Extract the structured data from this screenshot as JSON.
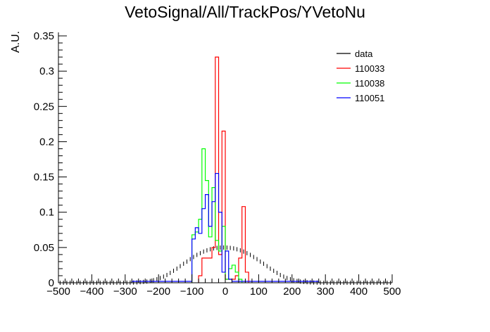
{
  "chart_data": {
    "type": "histogram",
    "title": "VetoSignal/All/TrackPos/YVetoNu",
    "xlabel": "",
    "ylabel": "A.U.",
    "xlim": [
      -500,
      500
    ],
    "ylim": [
      0,
      0.355
    ],
    "x_ticks": [
      -500,
      -400,
      -300,
      -200,
      -100,
      0,
      100,
      200,
      300,
      400,
      500
    ],
    "y_ticks": [
      0,
      0.05,
      0.1,
      0.15,
      0.2,
      0.25,
      0.3,
      0.35
    ],
    "x_tick_labels": [
      "−500",
      "−400",
      "−300",
      "−200",
      "−100",
      "0",
      "100",
      "200",
      "300",
      "400",
      "500"
    ],
    "y_tick_labels": [
      "0",
      "0.05",
      "0.1",
      "0.15",
      "0.2",
      "0.25",
      "0.3",
      "0.35"
    ],
    "legend_position": "top-right",
    "series": [
      {
        "name": "data",
        "color": "#000000",
        "style": "markers",
        "x": [
          -495,
          -485,
          -475,
          -465,
          -455,
          -445,
          -435,
          -425,
          -415,
          -405,
          -395,
          -385,
          -375,
          -365,
          -355,
          -345,
          -335,
          -325,
          -315,
          -305,
          -295,
          -285,
          -275,
          -265,
          -255,
          -245,
          -235,
          -225,
          -215,
          -205,
          -195,
          -185,
          -175,
          -165,
          -155,
          -145,
          -135,
          -125,
          -115,
          -105,
          -95,
          -85,
          -75,
          -65,
          -55,
          -45,
          -35,
          -25,
          -15,
          -5,
          5,
          15,
          25,
          35,
          45,
          55,
          65,
          75,
          85,
          95,
          105,
          115,
          125,
          135,
          145,
          155,
          165,
          175,
          185,
          195,
          205,
          215,
          225,
          235,
          245,
          255,
          265,
          275,
          285,
          295,
          305,
          315,
          325,
          335,
          345,
          355,
          365,
          375,
          385,
          395,
          405,
          415,
          425,
          435,
          445,
          455,
          465,
          475,
          485,
          495
        ],
        "y": [
          0,
          0,
          0,
          0,
          0,
          0,
          0,
          0,
          0,
          0,
          0,
          0,
          0,
          0,
          0,
          0,
          0,
          0,
          0,
          0,
          0.0001,
          0.0002,
          0.0003,
          0.0005,
          0.0008,
          0.0012,
          0.0017,
          0.0025,
          0.0036,
          0.005,
          0.0067,
          0.0087,
          0.011,
          0.014,
          0.017,
          0.02,
          0.0235,
          0.027,
          0.03,
          0.0335,
          0.0365,
          0.0395,
          0.042,
          0.0442,
          0.046,
          0.0475,
          0.0487,
          0.0494,
          0.0498,
          0.05,
          0.0498,
          0.0494,
          0.0487,
          0.0475,
          0.046,
          0.0442,
          0.042,
          0.0395,
          0.0365,
          0.0335,
          0.03,
          0.027,
          0.0235,
          0.02,
          0.017,
          0.014,
          0.011,
          0.0087,
          0.0067,
          0.005,
          0.0036,
          0.0025,
          0.0017,
          0.0012,
          0.0008,
          0.0005,
          0.0003,
          0.0002,
          0.0001,
          0,
          0,
          0,
          0,
          0,
          0,
          0,
          0,
          0,
          0,
          0,
          0,
          0,
          0,
          0,
          0,
          0,
          0,
          0,
          0,
          0
        ]
      },
      {
        "name": "110033",
        "color": "#ff0000",
        "style": "step",
        "bin_width": 10,
        "x": [
          -80,
          -70,
          -60,
          -50,
          -40,
          -30,
          -20,
          -10,
          0,
          10,
          20,
          30,
          40,
          50,
          60
        ],
        "y": [
          0.01,
          0.035,
          0.035,
          0.035,
          0.05,
          0.32,
          0.04,
          0.215,
          0.005,
          0.005,
          0.005,
          0.01,
          0.035,
          0.108,
          0.015
        ]
      },
      {
        "name": "110038",
        "color": "#00ff00",
        "style": "step",
        "bin_width": 10,
        "x": [
          -100,
          -90,
          -80,
          -70,
          -60,
          -50,
          -40,
          -30,
          -20,
          -10,
          0,
          10,
          20,
          30,
          40
        ],
        "y": [
          0.068,
          0.072,
          0.09,
          0.19,
          0.145,
          0.065,
          0.135,
          0.06,
          0.045,
          0.08,
          0.005,
          0.02,
          0.025,
          0.015,
          0.005
        ]
      },
      {
        "name": "110051",
        "color": "#0000ff",
        "style": "step",
        "bin_width": 10,
        "x": [
          -280,
          -270,
          -260,
          -250,
          -240,
          -230,
          -220,
          -210,
          -200,
          -190,
          -180,
          -170,
          -160,
          -150,
          -140,
          -130,
          -120,
          -110,
          -100,
          -90,
          -80,
          -70,
          -60,
          -50,
          -40,
          -30,
          -20,
          -10,
          0,
          10,
          20,
          30,
          40,
          50,
          60,
          70,
          80,
          90,
          100,
          110,
          120,
          130,
          140,
          150,
          160,
          170,
          180,
          190,
          200,
          210,
          220,
          230,
          240,
          250,
          260,
          270
        ],
        "y": [
          0.002,
          0.002,
          0.002,
          0.002,
          0.002,
          0.002,
          0.002,
          0.002,
          0.002,
          0.002,
          0.002,
          0.002,
          0.002,
          0.002,
          0.002,
          0.002,
          0.002,
          0.002,
          0.062,
          0.078,
          0.07,
          0.105,
          0.125,
          0.08,
          0.115,
          0.155,
          0.1,
          0.015,
          0.045,
          0.005,
          0.002,
          0.002,
          0.002,
          0.002,
          0.002,
          0.002,
          0.002,
          0.002,
          0.002,
          0.002,
          0.002,
          0.002,
          0.002,
          0.002,
          0.002,
          0.002,
          0.002,
          0.002,
          0.002,
          0.002,
          0.002,
          0.002,
          0.002,
          0.002,
          0.002,
          0.002
        ]
      }
    ]
  }
}
